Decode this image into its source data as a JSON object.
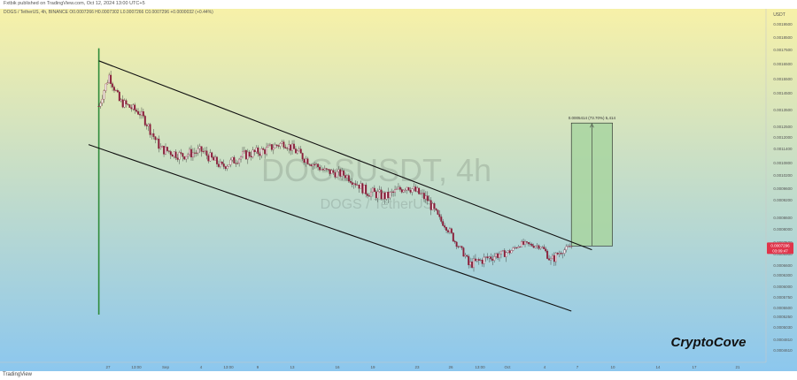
{
  "header": {
    "published_line": "Fxtbik published on TradingView.com, Oct 12, 2024 13:00 UTC+5",
    "symbol_line": "DOGS / TetherUS, 4h, BINANCE  O0.0007266  H0.0007302  L0.0007266  C0.0007296  +0.0000032 (+0.44%)"
  },
  "watermark": {
    "main": "DOGSUSDT, 4h",
    "sub": "DOGS / TetherUS"
  },
  "brand": {
    "text": "CryptoCove"
  },
  "footer": {
    "logo_text": "TradingView"
  },
  "colors": {
    "background_top": "#f7f1a8",
    "background_bottom": "#8cc7ee",
    "candle": "#8a1f3a",
    "wick": "#2a2a2a",
    "spike": "#2e8b3a",
    "channel_line": "#111111",
    "target_fill": "#a8d5a0",
    "target_border": "#222222",
    "price_tag": "#e0344a"
  },
  "chart_data": {
    "type": "candlestick",
    "title": "DOGSUSDT, 4h",
    "y_axis_unit": "USDT",
    "y_ticks": [
      "0.0019500",
      "0.0018500",
      "0.0017500",
      "0.0016500",
      "0.0015500",
      "0.0014500",
      "0.0013500",
      "0.0012500",
      "0.0012000",
      "0.0011400",
      "0.0010800",
      "0.0010200",
      "0.0009600",
      "0.0009200",
      "0.0008600",
      "0.0008000",
      "0.0007500",
      "0.0006900",
      "0.0006600",
      "0.0006300",
      "0.0006000",
      "0.0005750",
      "0.0005500",
      "0.0005250",
      "0.0005030",
      "0.0004810",
      "0.0004610"
    ],
    "x_ticks": [
      "27",
      "13:00",
      "Sep",
      "4",
      "13:00",
      "9",
      "13",
      "16",
      "19",
      "23",
      "26",
      "13:00",
      "Oct",
      "4",
      "7",
      "10",
      "14",
      "17",
      "21"
    ],
    "last_price": "0.0007296",
    "countdown": "03:09:47",
    "target_label": "0.0005414 (73.70%) 5,414",
    "channel": {
      "upper": {
        "start_date": "2024-08-27",
        "start_price": 0.00167,
        "end_date": "2024-10-14",
        "end_price": 0.00071
      },
      "lower": {
        "start_date": "2024-08-26",
        "start_price": 0.00116,
        "end_date": "2024-10-12",
        "end_price": 0.00054
      }
    },
    "target_box": {
      "start_date": "2024-10-12",
      "end_date": "2024-10-16",
      "bottom_price": 0.00073,
      "top_price": 0.00127
    },
    "spike": {
      "date": "2024-08-27",
      "high": 0.00176,
      "low": 0.00053
    },
    "path": [
      [
        "2024-08-27",
        0.00137
      ],
      [
        "2024-08-28",
        0.00157
      ],
      [
        "2024-08-29",
        0.0014
      ],
      [
        "2024-08-31",
        0.00133
      ],
      [
        "2024-09-02",
        0.00114
      ],
      [
        "2024-09-04",
        0.00111
      ],
      [
        "2024-09-06",
        0.00113
      ],
      [
        "2024-09-08",
        0.00106
      ],
      [
        "2024-09-10",
        0.00111
      ],
      [
        "2024-09-12",
        0.00113
      ],
      [
        "2024-09-14",
        0.00117
      ],
      [
        "2024-09-16",
        0.0011
      ],
      [
        "2024-09-18",
        0.00104
      ],
      [
        "2024-09-20",
        0.00102
      ],
      [
        "2024-09-22",
        0.00095
      ],
      [
        "2024-09-24",
        0.00093
      ],
      [
        "2024-09-26",
        0.00097
      ],
      [
        "2024-09-28",
        0.00092
      ],
      [
        "2024-09-30",
        0.0008
      ],
      [
        "2024-10-02",
        0.00066
      ],
      [
        "2024-10-04",
        0.00068
      ],
      [
        "2024-10-06",
        0.0007
      ],
      [
        "2024-10-07",
        0.00074
      ],
      [
        "2024-10-09",
        0.00073
      ],
      [
        "2024-10-10",
        0.00067
      ],
      [
        "2024-10-12",
        0.00073
      ]
    ]
  }
}
